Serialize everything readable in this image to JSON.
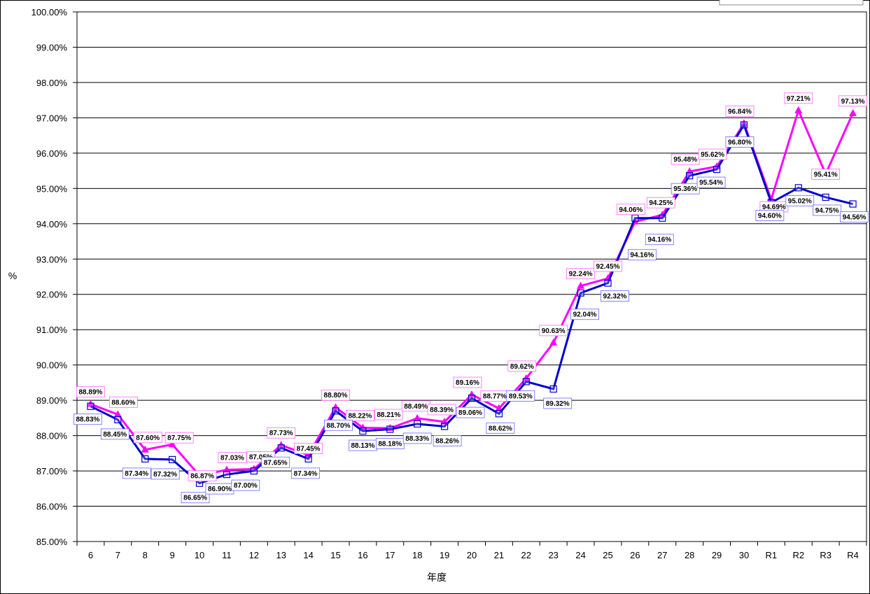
{
  "chart_data": {
    "type": "line",
    "title": "",
    "xlabel": "年度",
    "ylabel": "%",
    "ylim": [
      85,
      100
    ],
    "ytick_step": 1,
    "grid": true,
    "legend": "top-right",
    "categories": [
      "6",
      "7",
      "8",
      "9",
      "10",
      "11",
      "12",
      "13",
      "14",
      "15",
      "16",
      "17",
      "18",
      "19",
      "20",
      "21",
      "22",
      "23",
      "24",
      "25",
      "26",
      "27",
      "28",
      "29",
      "30",
      "R1",
      "R2",
      "R3",
      "R4"
    ],
    "series": [
      {
        "name": "",
        "color": "#ff00ff",
        "marker": "triangle",
        "values": [
          88.89,
          88.6,
          87.6,
          87.75,
          86.87,
          87.03,
          87.05,
          87.73,
          87.45,
          88.8,
          88.22,
          88.21,
          88.49,
          88.39,
          89.16,
          88.77,
          89.62,
          90.63,
          92.24,
          92.45,
          94.06,
          94.25,
          95.48,
          95.62,
          96.84,
          94.69,
          97.21,
          95.41,
          97.13
        ],
        "labels": [
          "88.89%",
          "88.60%",
          "87.60%",
          "87.75%",
          "86.87%",
          "87.03%",
          "87.05%",
          "87.73%",
          "87.45%",
          "88.80%",
          "88.22%",
          "88.21%",
          "88.49%",
          "88.39%",
          "89.16%",
          "88.77%",
          "89.62%",
          "90.63%",
          "92.24%",
          "92.45%",
          "94.06%",
          "94.25%",
          "95.48%",
          "95.62%",
          "96.84%",
          "94.69%",
          "97.21%",
          "95.41%",
          "97.13%"
        ]
      },
      {
        "name": "",
        "color": "#0000cc",
        "marker": "square",
        "values": [
          88.83,
          88.45,
          87.34,
          87.32,
          86.65,
          86.9,
          87.0,
          87.65,
          87.34,
          88.7,
          88.13,
          88.18,
          88.33,
          88.26,
          89.06,
          88.62,
          89.53,
          89.32,
          92.04,
          92.32,
          94.16,
          94.16,
          95.36,
          95.54,
          96.8,
          94.6,
          95.02,
          94.75,
          94.56
        ],
        "labels": [
          "88.83%",
          "88.45%",
          "87.34%",
          "87.32%",
          "86.65%",
          "86.90%",
          "87.00%",
          "87.65%",
          "87.34%",
          "88.70%",
          "88.13%",
          "88.18%",
          "88.33%",
          "88.26%",
          "89.06%",
          "88.62%",
          "89.53%",
          "89.32%",
          "92.04%",
          "92.32%",
          "94.16%",
          "94.16%",
          "95.36%",
          "95.54%",
          "96.80%",
          "94.60%",
          "95.02%",
          "94.75%",
          "94.56%"
        ]
      }
    ]
  }
}
